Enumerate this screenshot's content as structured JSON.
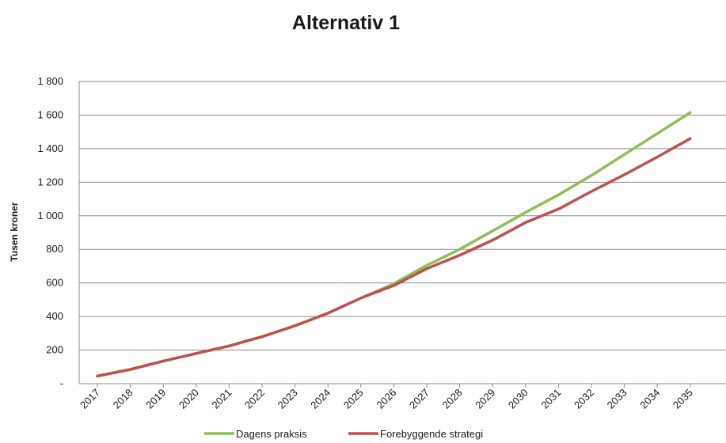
{
  "chart_data": {
    "type": "line",
    "title": "Alternativ 1",
    "xlabel": "",
    "ylabel": "Tusen kroner",
    "categories": [
      "2017",
      "2018",
      "2019",
      "2020",
      "2021",
      "2022",
      "2023",
      "2024",
      "2025",
      "2026",
      "2027",
      "2028",
      "2029",
      "2030",
      "2031",
      "2032",
      "2033",
      "2034",
      "2035"
    ],
    "ylim": [
      0,
      1800
    ],
    "yticks": [
      0,
      200,
      400,
      600,
      800,
      1000,
      1200,
      1400,
      1600,
      1800
    ],
    "ytick_labels": [
      "-",
      "200",
      "400",
      "600",
      "800",
      "1 000",
      "1 200",
      "1 400",
      "1 600",
      "1 800"
    ],
    "grid": true,
    "legend_position": "bottom",
    "series": [
      {
        "name": "Dagens praksis",
        "color": "#8cc152",
        "values": [
          45,
          85,
          135,
          180,
          225,
          280,
          345,
          420,
          510,
          595,
          705,
          800,
          910,
          1020,
          1125,
          1240,
          1365,
          1490,
          1615
        ]
      },
      {
        "name": "Forebyggende strategi",
        "color": "#c0504d",
        "values": [
          45,
          85,
          135,
          180,
          225,
          280,
          345,
          420,
          510,
          585,
          685,
          765,
          855,
          960,
          1040,
          1145,
          1245,
          1350,
          1460
        ]
      }
    ]
  }
}
